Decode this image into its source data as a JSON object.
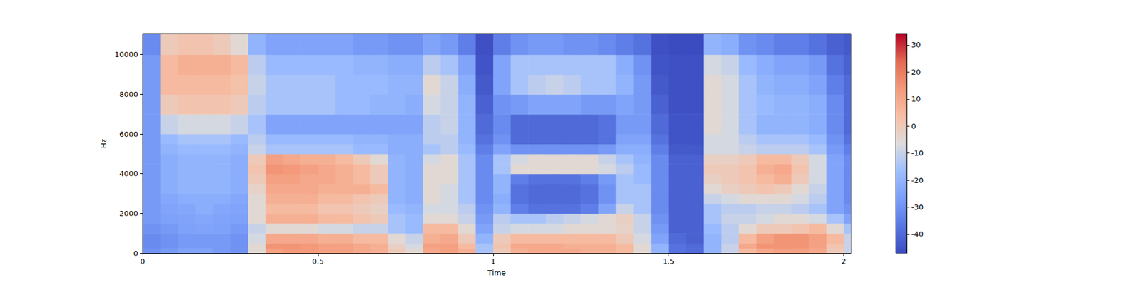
{
  "chart_data": {
    "type": "heatmap",
    "x_label": "Time",
    "y_label": "Hz",
    "xlim": [
      0,
      2.02
    ],
    "xticks": [
      0,
      0.5,
      1,
      1.5,
      2
    ],
    "ylim": [
      0,
      11025
    ],
    "yticks": [
      0,
      2000,
      4000,
      6000,
      8000,
      10000
    ],
    "x_bins": [
      0,
      0.05,
      0.1,
      0.15,
      0.2,
      0.25,
      0.3,
      0.35,
      0.4,
      0.45,
      0.5,
      0.55,
      0.6,
      0.65,
      0.7,
      0.75,
      0.8,
      0.85,
      0.9,
      0.95,
      1.0,
      1.05,
      1.1,
      1.15,
      1.2,
      1.25,
      1.3,
      1.35,
      1.4,
      1.45,
      1.5,
      1.55,
      1.6,
      1.65,
      1.7,
      1.75,
      1.8,
      1.85,
      1.9,
      1.95,
      2.0,
      2.02
    ],
    "y_bins": [
      0,
      250,
      500,
      1000,
      1500,
      2000,
      2500,
      3000,
      3500,
      4000,
      4500,
      5000,
      5500,
      6000,
      7000,
      8000,
      9000,
      10000,
      11025
    ],
    "cells": [
      [
        -30,
        -28,
        -25,
        -25,
        -28,
        -30,
        -5,
        12,
        14,
        14,
        12,
        12,
        10,
        8,
        0,
        -5,
        10,
        12,
        8,
        -15,
        0,
        8,
        10,
        10,
        10,
        8,
        8,
        5,
        -5,
        -20,
        -38,
        -40,
        -20,
        -10,
        5,
        10,
        12,
        12,
        10,
        0,
        -10
      ],
      [
        -32,
        -30,
        -28,
        -28,
        -28,
        -30,
        -5,
        15,
        15,
        14,
        12,
        12,
        10,
        8,
        -2,
        -8,
        12,
        12,
        5,
        -15,
        2,
        10,
        10,
        10,
        8,
        8,
        8,
        5,
        -5,
        -20,
        -38,
        -40,
        -20,
        -10,
        10,
        15,
        15,
        15,
        12,
        2,
        -10
      ],
      [
        -32,
        -30,
        -28,
        -28,
        -28,
        -30,
        -8,
        10,
        10,
        10,
        8,
        8,
        5,
        5,
        -5,
        -10,
        8,
        10,
        0,
        -20,
        0,
        5,
        5,
        5,
        5,
        5,
        5,
        0,
        -8,
        -25,
        -40,
        -42,
        -20,
        -12,
        5,
        12,
        15,
        15,
        12,
        5,
        -10
      ],
      [
        -30,
        -28,
        -26,
        -25,
        -26,
        -28,
        -10,
        -5,
        -5,
        -5,
        -8,
        -8,
        -10,
        -10,
        -15,
        -18,
        5,
        5,
        -5,
        -25,
        -10,
        -8,
        -8,
        -8,
        -5,
        -5,
        -5,
        -3,
        -10,
        -28,
        -42,
        -42,
        -18,
        -12,
        -5,
        0,
        0,
        2,
        5,
        -5,
        -15
      ],
      [
        -28,
        -26,
        -25,
        -24,
        -25,
        -26,
        -5,
        8,
        8,
        8,
        5,
        5,
        2,
        0,
        -15,
        -18,
        -5,
        -5,
        -10,
        -28,
        -12,
        -15,
        -15,
        -12,
        -10,
        -8,
        -5,
        -2,
        -10,
        -30,
        -42,
        -42,
        -15,
        -10,
        -10,
        -8,
        -5,
        -5,
        -8,
        -15,
        -25
      ],
      [
        -28,
        -25,
        -24,
        -22,
        -24,
        -25,
        -5,
        5,
        5,
        5,
        2,
        2,
        0,
        -2,
        -18,
        -20,
        -8,
        -8,
        -12,
        -30,
        -20,
        -35,
        -38,
        -38,
        -38,
        -35,
        -25,
        -10,
        -15,
        -32,
        -42,
        -42,
        -15,
        -12,
        -12,
        -10,
        -10,
        -12,
        -15,
        -25,
        -30
      ],
      [
        -28,
        -24,
        -22,
        -22,
        -22,
        -24,
        -5,
        8,
        8,
        8,
        5,
        5,
        2,
        0,
        -20,
        -22,
        -5,
        -8,
        -15,
        -32,
        -22,
        -38,
        -40,
        -40,
        -40,
        -38,
        -30,
        -15,
        -15,
        -32,
        -42,
        -42,
        -10,
        -8,
        -5,
        -5,
        -5,
        -8,
        -12,
        -25,
        -32
      ],
      [
        -28,
        -22,
        -20,
        -20,
        -20,
        -22,
        -3,
        10,
        10,
        10,
        8,
        8,
        8,
        5,
        -20,
        -22,
        -5,
        -8,
        -15,
        -32,
        -20,
        -38,
        -40,
        -40,
        -40,
        -38,
        -30,
        -15,
        -15,
        -32,
        -42,
        -42,
        -5,
        -2,
        0,
        2,
        0,
        -5,
        -10,
        -25,
        -32
      ],
      [
        -28,
        -22,
        -20,
        -20,
        -20,
        -22,
        0,
        12,
        12,
        10,
        10,
        8,
        5,
        0,
        -20,
        -22,
        -5,
        -5,
        -15,
        -32,
        -20,
        -35,
        -38,
        -38,
        -38,
        -35,
        -28,
        -15,
        -18,
        -32,
        -42,
        -42,
        -2,
        0,
        2,
        5,
        8,
        0,
        -8,
        -25,
        -32
      ],
      [
        -28,
        -22,
        -20,
        -20,
        -20,
        -22,
        2,
        15,
        14,
        12,
        10,
        8,
        5,
        0,
        -20,
        -22,
        -5,
        -5,
        -15,
        -32,
        -15,
        -5,
        -5,
        -5,
        -5,
        -5,
        -8,
        -12,
        -18,
        -32,
        -42,
        -42,
        0,
        0,
        2,
        8,
        10,
        2,
        -8,
        -25,
        -32
      ],
      [
        -28,
        -22,
        -20,
        -20,
        -20,
        -22,
        0,
        12,
        10,
        8,
        8,
        5,
        0,
        -5,
        -20,
        -22,
        -8,
        -5,
        -15,
        -32,
        -15,
        -8,
        -5,
        -5,
        -5,
        -5,
        -10,
        -15,
        -20,
        -32,
        -42,
        -42,
        -2,
        -2,
        0,
        5,
        5,
        0,
        -8,
        -25,
        -32
      ],
      [
        -28,
        -20,
        -18,
        -18,
        -18,
        -20,
        -10,
        -15,
        -15,
        -15,
        -15,
        -15,
        -18,
        -18,
        -22,
        -22,
        -15,
        -12,
        -18,
        -35,
        -25,
        -30,
        -30,
        -30,
        -30,
        -30,
        -28,
        -22,
        -22,
        -35,
        -44,
        -44,
        -8,
        -8,
        -10,
        -12,
        -12,
        -12,
        -15,
        -28,
        -35
      ],
      [
        -28,
        -18,
        -15,
        -15,
        -15,
        -18,
        -12,
        -18,
        -18,
        -18,
        -18,
        -18,
        -20,
        -20,
        -22,
        -22,
        -12,
        -12,
        -20,
        -38,
        -30,
        -40,
        -40,
        -40,
        -40,
        -40,
        -38,
        -25,
        -25,
        -38,
        -45,
        -45,
        -8,
        -8,
        -12,
        -15,
        -15,
        -15,
        -18,
        -30,
        -38
      ],
      [
        -28,
        -10,
        -8,
        -8,
        -8,
        -10,
        -15,
        -25,
        -25,
        -25,
        -25,
        -25,
        -25,
        -25,
        -25,
        -25,
        -12,
        -10,
        -20,
        -40,
        -32,
        -40,
        -40,
        -40,
        -40,
        -40,
        -38,
        -28,
        -28,
        -40,
        -45,
        -45,
        -5,
        -8,
        -15,
        -20,
        -20,
        -20,
        -22,
        -32,
        -40
      ],
      [
        -28,
        0,
        2,
        2,
        2,
        0,
        -12,
        -15,
        -15,
        -15,
        -15,
        -18,
        -18,
        -20,
        -20,
        -22,
        -8,
        -10,
        -20,
        -42,
        -30,
        -28,
        -25,
        -25,
        -25,
        -28,
        -28,
        -25,
        -28,
        -42,
        -46,
        -46,
        -5,
        -8,
        -15,
        -18,
        -20,
        -20,
        -22,
        -32,
        -40
      ],
      [
        -28,
        5,
        5,
        5,
        5,
        3,
        -10,
        -15,
        -15,
        -15,
        -15,
        -18,
        -18,
        -18,
        -20,
        -20,
        -5,
        -10,
        -22,
        -44,
        -25,
        -15,
        -12,
        -10,
        -12,
        -15,
        -15,
        -20,
        -28,
        -44,
        -46,
        -46,
        -5,
        -8,
        -15,
        -20,
        -22,
        -22,
        -25,
        -35,
        -40
      ],
      [
        -28,
        5,
        8,
        8,
        8,
        5,
        -12,
        -18,
        -18,
        -18,
        -18,
        -18,
        -20,
        -20,
        -22,
        -22,
        -12,
        -15,
        -25,
        -45,
        -25,
        -15,
        -15,
        -15,
        -15,
        -15,
        -15,
        -22,
        -30,
        -45,
        -46,
        -46,
        -8,
        -10,
        -18,
        -22,
        -25,
        -25,
        -28,
        -38,
        -42
      ],
      [
        -32,
        0,
        2,
        2,
        0,
        -5,
        -20,
        -25,
        -25,
        -25,
        -25,
        -25,
        -28,
        -28,
        -30,
        -30,
        -25,
        -28,
        -35,
        -46,
        -35,
        -30,
        -28,
        -28,
        -30,
        -30,
        -32,
        -35,
        -38,
        -46,
        -47,
        -47,
        -20,
        -22,
        -30,
        -32,
        -35,
        -35,
        -38,
        -42,
        -44
      ]
    ],
    "colorbar": {
      "range": [
        -47,
        34
      ],
      "ticks": [
        -40,
        -30,
        -20,
        -10,
        0,
        10,
        20,
        30
      ]
    }
  }
}
